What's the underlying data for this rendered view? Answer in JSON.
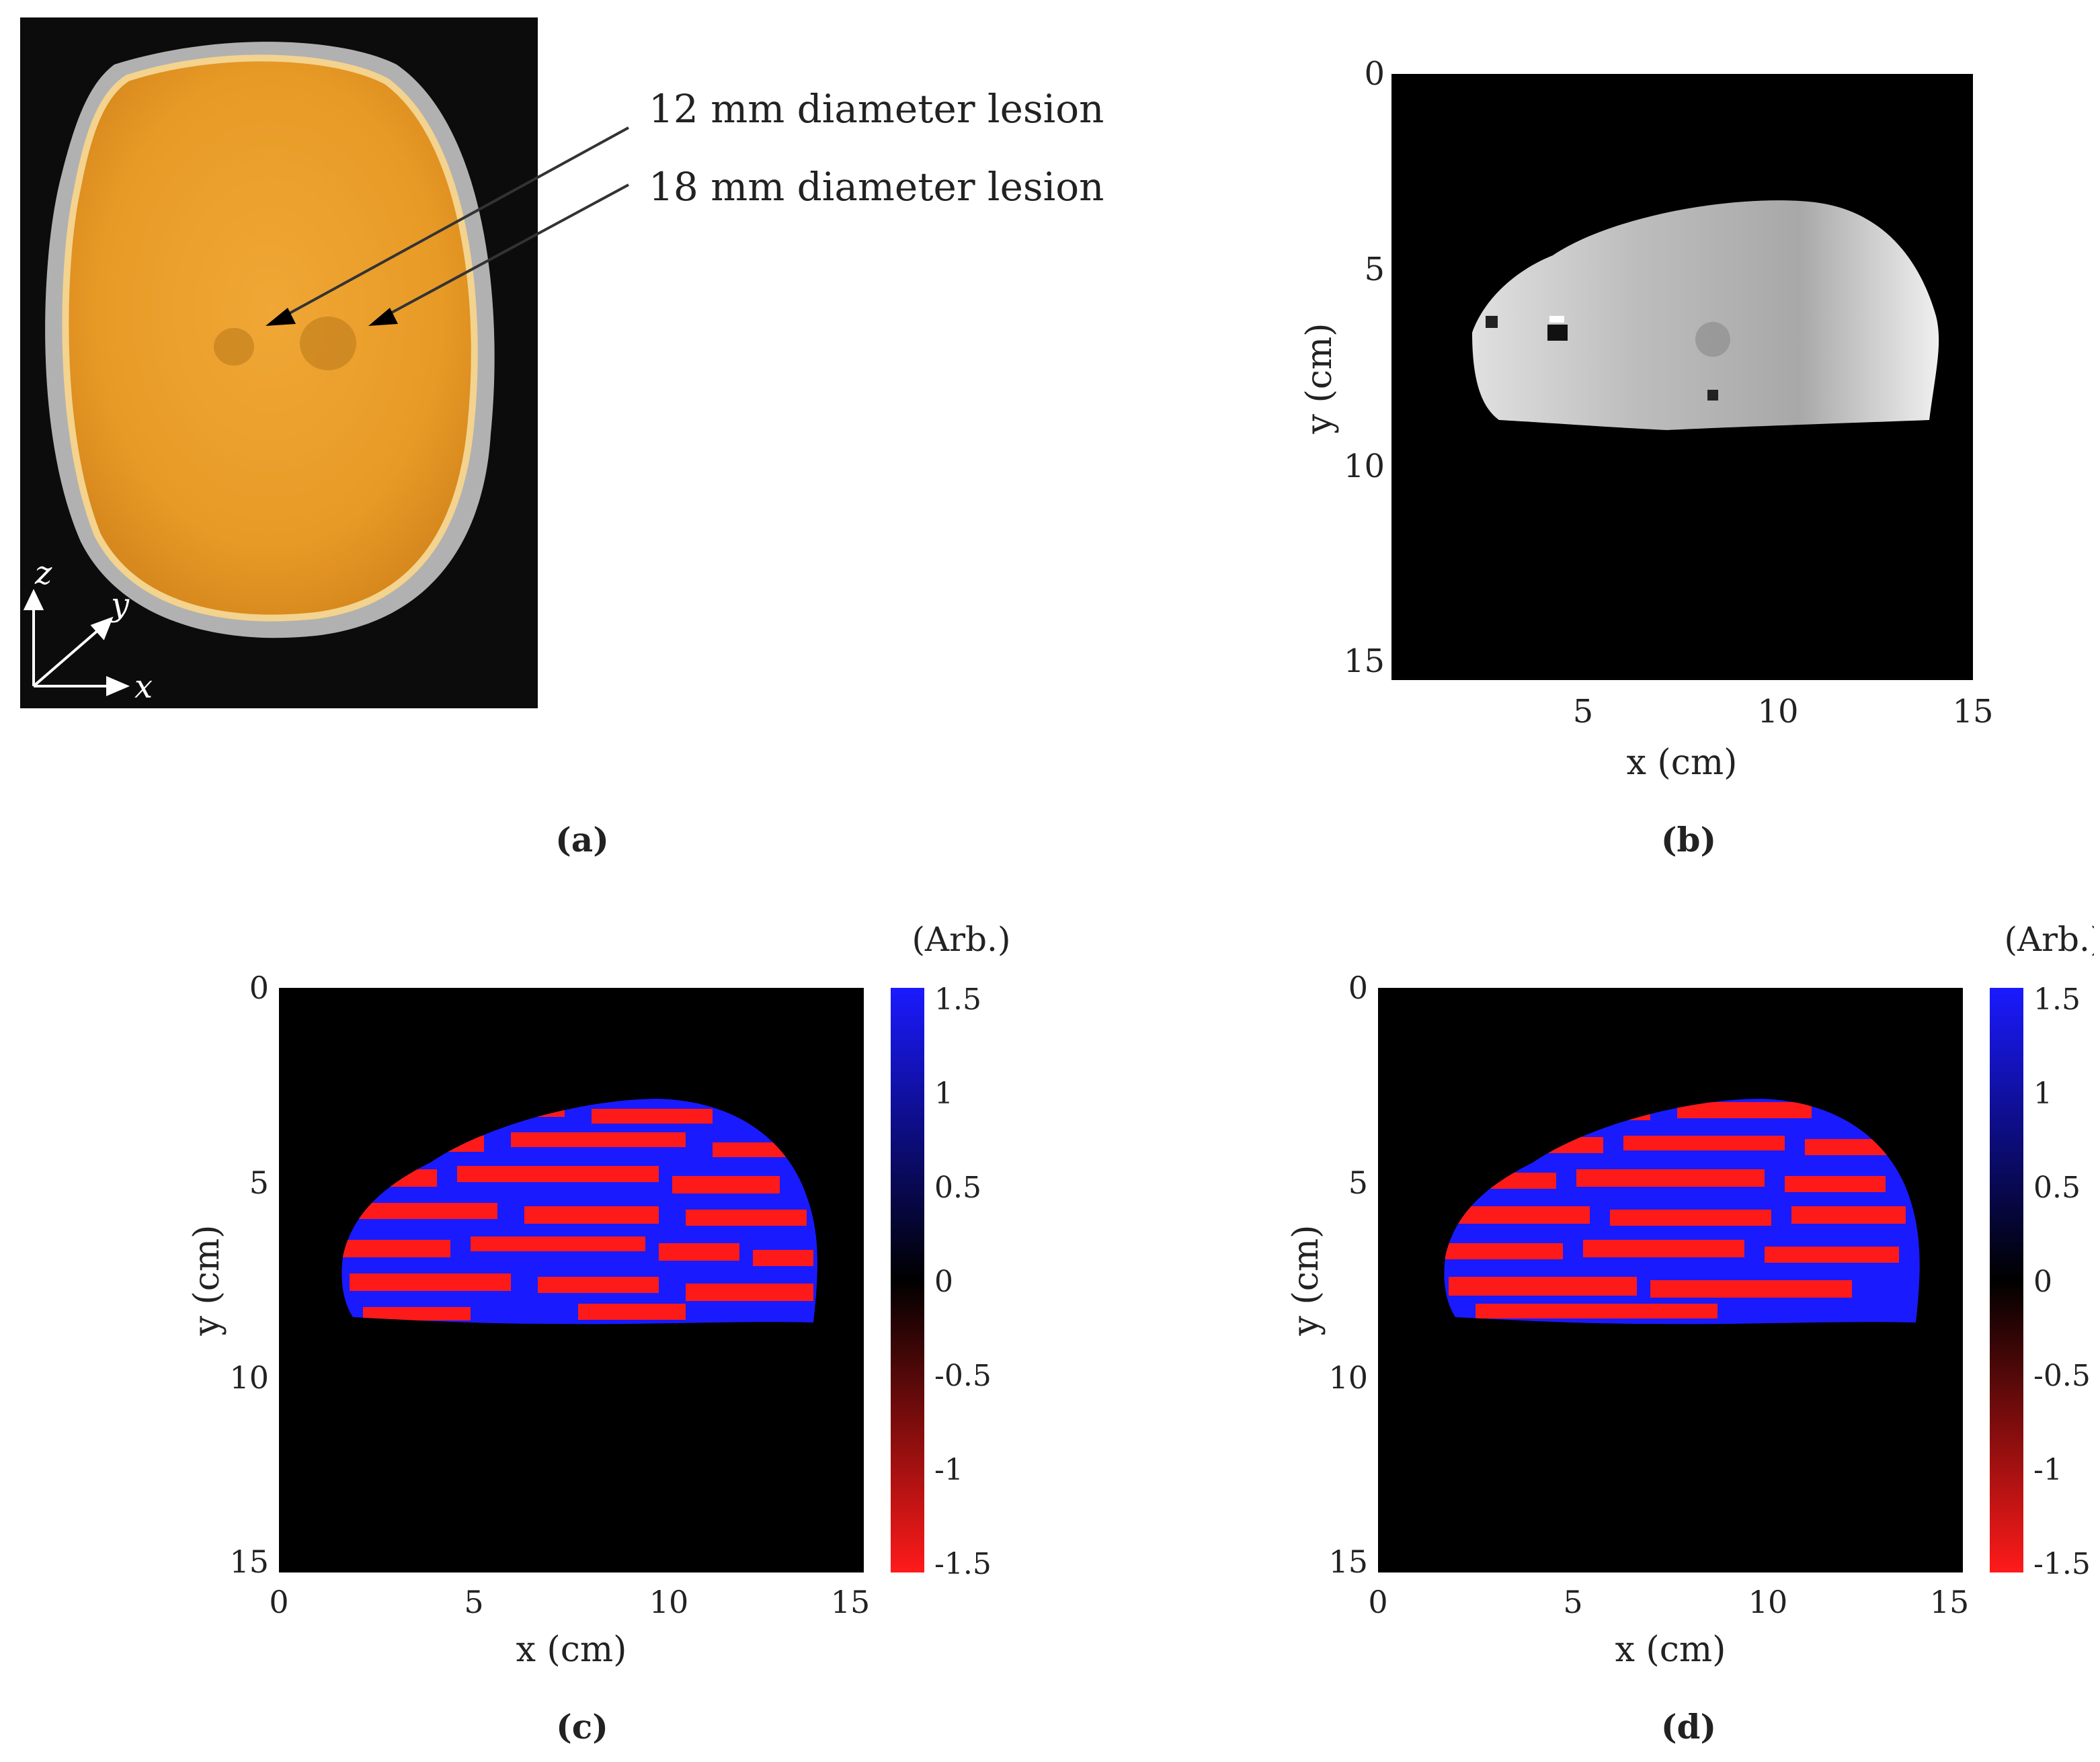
{
  "panel_a": {
    "caption": "(a)",
    "annotations": [
      {
        "label": "12 mm diameter lesion"
      },
      {
        "label": "18 mm diameter lesion"
      }
    ],
    "axes": {
      "z": "z",
      "y": "y",
      "x": "x"
    }
  },
  "panel_b": {
    "caption": "(b)",
    "xlabel": "x (cm)",
    "ylabel": "y (cm)",
    "xticks": [
      "5",
      "10",
      "15"
    ],
    "yticks": [
      "0",
      "5",
      "10",
      "15"
    ]
  },
  "panel_c": {
    "caption": "(c)",
    "xlabel": "x (cm)",
    "ylabel": "y (cm)",
    "xticks": [
      "0",
      "5",
      "10",
      "15"
    ],
    "yticks": [
      "0",
      "5",
      "10",
      "15"
    ],
    "colorbar_unit": "(Arb.)",
    "colorbar_ticks": [
      "1.5",
      "1",
      "0.5",
      "0",
      "-0.5",
      "-1",
      "-1.5"
    ]
  },
  "panel_d": {
    "caption": "(d)",
    "xlabel": "x (cm)",
    "ylabel": "y (cm)",
    "xticks": [
      "0",
      "5",
      "10",
      "15"
    ],
    "yticks": [
      "0",
      "5",
      "10",
      "15"
    ],
    "colorbar_unit": "(Arb.)",
    "colorbar_ticks": [
      "1.5",
      "1",
      "0.5",
      "0",
      "-0.5",
      "-1",
      "-1.5"
    ]
  },
  "colors": {
    "phantom_orange": "#e89d27",
    "background": "#000000",
    "positive": "#1a1aff",
    "negative": "#ff1a1a"
  }
}
